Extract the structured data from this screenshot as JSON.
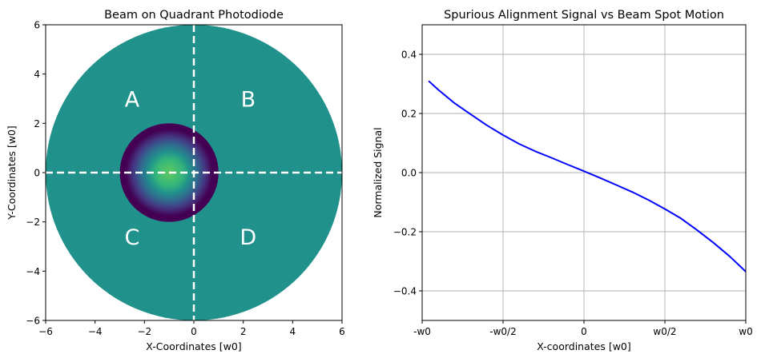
{
  "chart_data": [
    {
      "type": "heatmap",
      "title": "Beam on Quadrant Photodiode",
      "xlabel": "X-Coordinates [w0]",
      "ylabel": "Y-Coordinates [w0]",
      "xlim": [
        -6,
        6
      ],
      "ylim": [
        -6,
        6
      ],
      "xticks": [
        -6,
        -4,
        -2,
        0,
        2,
        4,
        6
      ],
      "yticks": [
        -6,
        -4,
        -2,
        0,
        2,
        4,
        6
      ],
      "xtick_labels": [
        "−6",
        "−4",
        "−2",
        "0",
        "2",
        "4",
        "6"
      ],
      "ytick_labels": [
        "−6",
        "−4",
        "−2",
        "0",
        "2",
        "4",
        "6"
      ],
      "detector": {
        "center": [
          0,
          0
        ],
        "radius": 6,
        "color": "#21918c"
      },
      "beam": {
        "center": [
          -1,
          0
        ],
        "radius": 2,
        "colormap": "viridis",
        "edge_color": "#440154",
        "peak_color": "#5ec962"
      },
      "divider_lines": [
        {
          "orientation": "vertical",
          "value": 0
        },
        {
          "orientation": "horizontal",
          "value": 0
        }
      ],
      "quadrant_labels": [
        {
          "label": "A",
          "x": -2.5,
          "y": 3
        },
        {
          "label": "B",
          "x": 2.2,
          "y": 3
        },
        {
          "label": "C",
          "x": -2.5,
          "y": -2.6
        },
        {
          "label": "D",
          "x": 2.2,
          "y": -2.6
        }
      ],
      "grid": false
    },
    {
      "type": "line",
      "title": "Spurious Alignment Signal vs Beam Spot Motion",
      "xlabel": "X-coordinates [w0]",
      "ylabel": "Normalized Signal",
      "xlim": [
        -1,
        1
      ],
      "ylim": [
        -0.5,
        0.5
      ],
      "xticks": [
        -1,
        -0.5,
        0,
        0.5,
        1
      ],
      "xtick_labels": [
        "-w0",
        "-w0/2",
        "0",
        "w0/2",
        "w0"
      ],
      "yticks": [
        -0.4,
        -0.2,
        0,
        0.2,
        0.4
      ],
      "ytick_labels": [
        "−0.4",
        "−0.2",
        "0.0",
        "0.2",
        "0.4"
      ],
      "grid": true,
      "series": [
        {
          "color": "#0000ff",
          "x": [
            -0.96,
            -0.9,
            -0.8,
            -0.7,
            -0.6,
            -0.5,
            -0.4,
            -0.3,
            -0.2,
            -0.1,
            0,
            0.1,
            0.2,
            0.3,
            0.4,
            0.5,
            0.6,
            0.7,
            0.8,
            0.9,
            1.0
          ],
          "y": [
            0.31,
            0.28,
            0.235,
            0.197,
            0.16,
            0.127,
            0.097,
            0.072,
            0.05,
            0.027,
            0.005,
            -0.018,
            -0.042,
            -0.066,
            -0.093,
            -0.123,
            -0.155,
            -0.195,
            -0.237,
            -0.283,
            -0.335
          ]
        }
      ]
    }
  ]
}
